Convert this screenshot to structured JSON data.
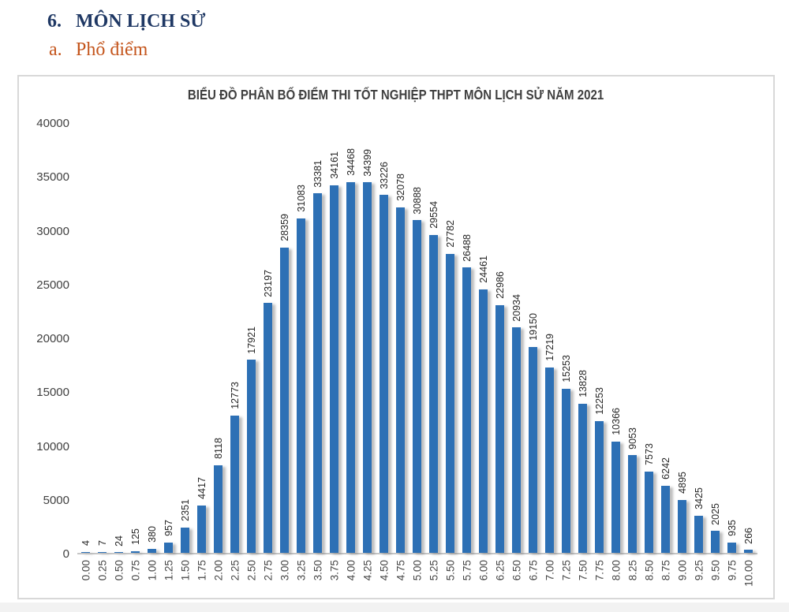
{
  "page": {
    "heading_number": "6.",
    "heading": "MÔN LỊCH SỬ",
    "subheading_letter": "a.",
    "subheading": "Phổ điểm"
  },
  "colors": {
    "heading_navy": "#1f3864",
    "subheading_orange": "#c4551c",
    "bar_blue": "#2d70b5",
    "axis_gray": "#c6c6c6",
    "text_gray": "#404040"
  },
  "chart_data": {
    "type": "bar",
    "title": "BIỂU ĐỒ PHÂN BỐ ĐIỂM THI TỐT NGHIỆP THPT MÔN LỊCH SỬ NĂM 2021",
    "xlabel": "",
    "ylabel": "",
    "ylim": [
      0,
      40000
    ],
    "yticks": [
      0,
      5000,
      10000,
      15000,
      20000,
      25000,
      30000,
      35000,
      40000
    ],
    "grid": false,
    "legend": false,
    "data_labels": true,
    "categories": [
      "0.00",
      "0.25",
      "0.50",
      "0.75",
      "1.00",
      "1.25",
      "1.50",
      "1.75",
      "2.00",
      "2.25",
      "2.50",
      "2.75",
      "3.00",
      "3.25",
      "3.50",
      "3.75",
      "4.00",
      "4.25",
      "4.50",
      "4.75",
      "5.00",
      "5.25",
      "5.50",
      "5.75",
      "6.00",
      "6.25",
      "6.50",
      "6.75",
      "7.00",
      "7.25",
      "7.50",
      "7.75",
      "8.00",
      "8.25",
      "8.50",
      "8.75",
      "9.00",
      "9.25",
      "9.50",
      "9.75",
      "10.00"
    ],
    "values": [
      4,
      7,
      24,
      125,
      380,
      957,
      2351,
      4417,
      8118,
      12773,
      17921,
      23197,
      28359,
      31083,
      33381,
      34161,
      34468,
      34399,
      33226,
      32078,
      30888,
      29554,
      27782,
      26488,
      24461,
      22986,
      20934,
      19150,
      17219,
      15253,
      13828,
      12253,
      10366,
      9053,
      7573,
      6242,
      4895,
      3425,
      2025,
      935,
      266
    ]
  }
}
